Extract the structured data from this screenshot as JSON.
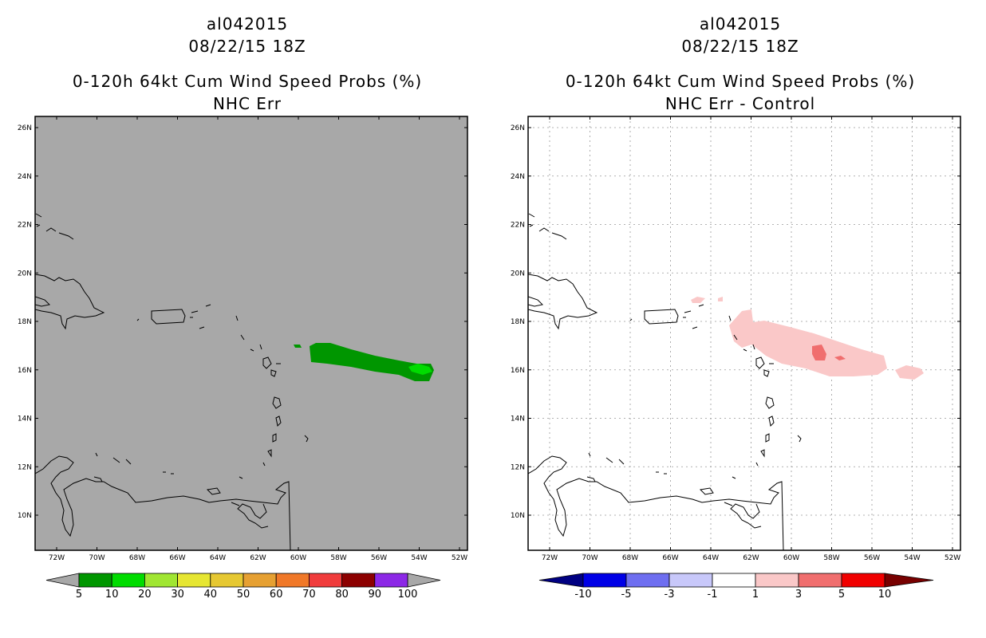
{
  "left": {
    "storm_id": "al042015",
    "datetime": "08/22/15 18Z",
    "product": "0-120h 64kt Cum Wind Speed Probs (%)",
    "subtitle": "NHC Err",
    "background_color": "#a8a8a8",
    "colorbar": {
      "labels": [
        "5",
        "10",
        "20",
        "30",
        "40",
        "50",
        "60",
        "70",
        "80",
        "90",
        "100"
      ],
      "colors": [
        "#009600",
        "#00dc00",
        "#a0e632",
        "#e6e632",
        "#e6c832",
        "#e6a032",
        "#f07828",
        "#f03c3c",
        "#8c0000",
        "#8c28e6"
      ]
    }
  },
  "right": {
    "storm_id": "al042015",
    "datetime": "08/22/15 18Z",
    "product": "0-120h 64kt Cum Wind Speed Probs (%)",
    "subtitle": "NHC Err - Control",
    "background_color": "#ffffff",
    "colorbar": {
      "labels": [
        "-10",
        "-5",
        "-3",
        "-1",
        "1",
        "3",
        "5",
        "10"
      ],
      "colors": [
        "#0000e6",
        "#6e6ef0",
        "#c8c8fa",
        "#ffffff",
        "#fac8c8",
        "#f06e6e",
        "#f00000"
      ],
      "end_colors": [
        "#000082",
        "#780000"
      ]
    }
  },
  "axes": {
    "lat_labels": [
      "26N",
      "24N",
      "22N",
      "20N",
      "18N",
      "16N",
      "14N",
      "12N",
      "10N"
    ],
    "lon_labels": [
      "72W",
      "70W",
      "68W",
      "66W",
      "64W",
      "62W",
      "60W",
      "58W",
      "56W",
      "54W",
      "52W"
    ]
  }
}
